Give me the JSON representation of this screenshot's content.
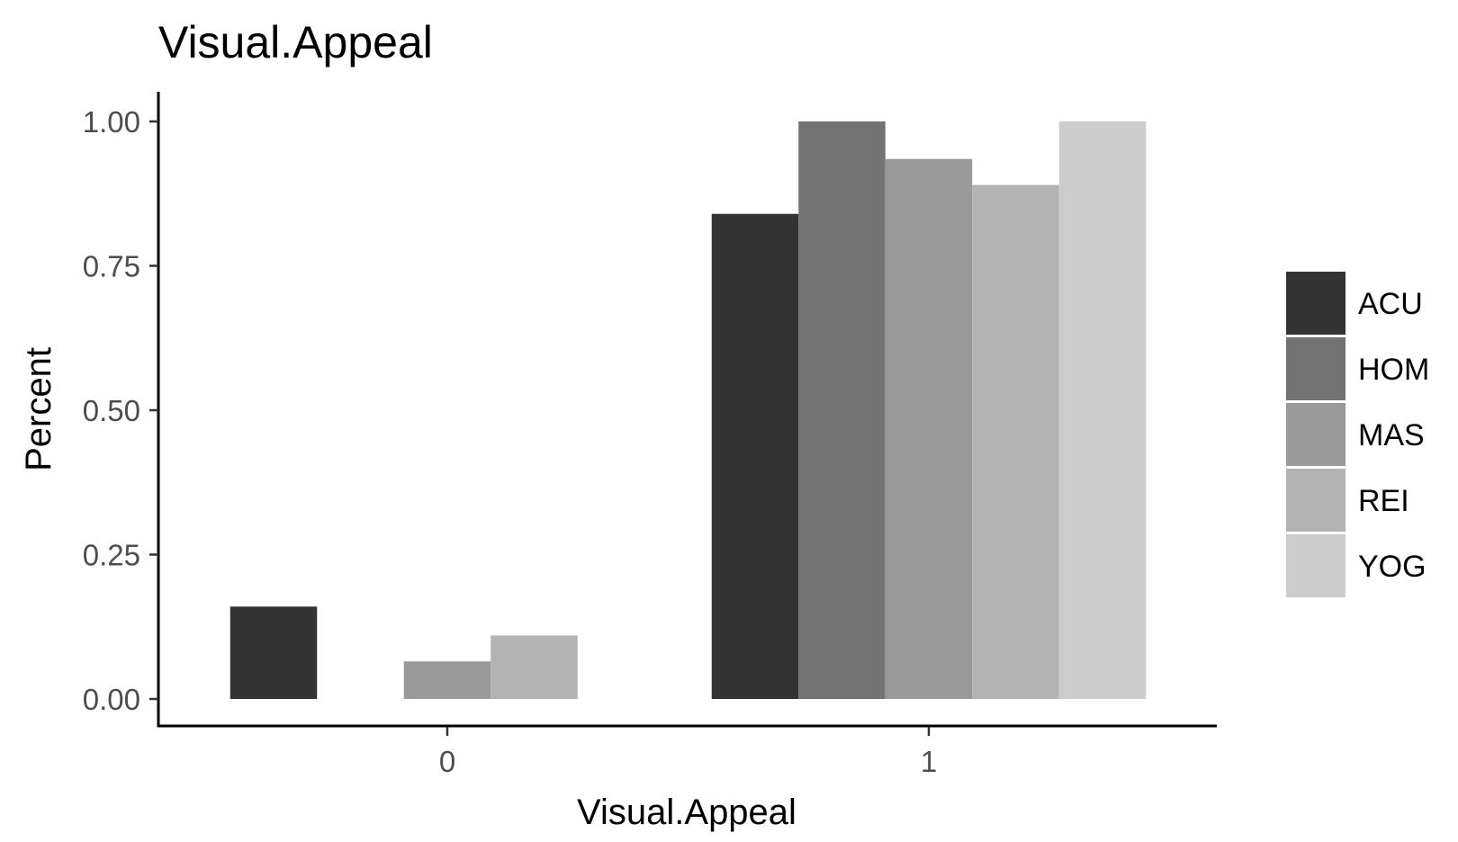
{
  "chart_data": {
    "type": "bar",
    "title": "Visual.Appeal",
    "xlabel": "Visual.Appeal",
    "ylabel": "Percent",
    "categories": [
      "0",
      "1"
    ],
    "ylim": [
      0,
      1.05
    ],
    "yticks": [
      "0.00",
      "0.25",
      "0.50",
      "0.75",
      "1.00"
    ],
    "ytick_values": [
      0,
      0.25,
      0.5,
      0.75,
      1.0
    ],
    "grid": false,
    "legend_position": "right",
    "series": [
      {
        "name": "ACU",
        "color": "#333333",
        "values": [
          0.16,
          0.84
        ]
      },
      {
        "name": "HOM",
        "color": "#737373",
        "values": [
          0,
          1.0
        ]
      },
      {
        "name": "MAS",
        "color": "#999999",
        "values": [
          0.065,
          0.935
        ]
      },
      {
        "name": "REI",
        "color": "#b3b3b3",
        "values": [
          0.11,
          0.89
        ]
      },
      {
        "name": "YOG",
        "color": "#cccccc",
        "values": [
          0,
          1.0
        ]
      }
    ]
  }
}
